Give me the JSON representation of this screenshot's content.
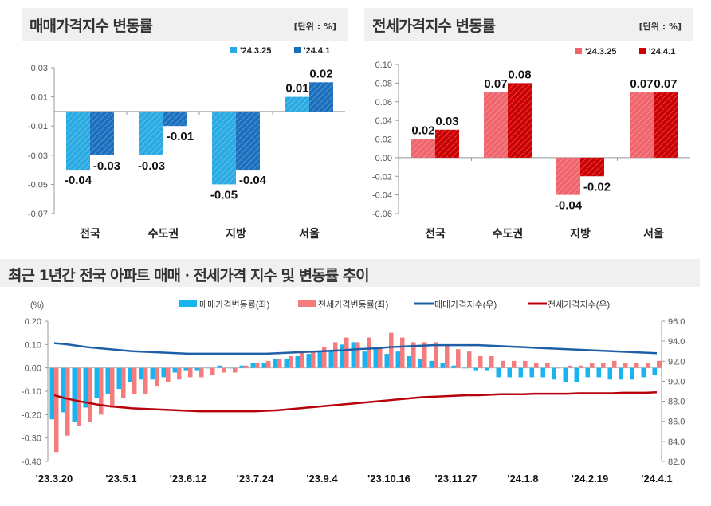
{
  "chart_data": [
    {
      "type": "bar",
      "title": "매매가격지수 변동률",
      "unit": "[단위 : %]",
      "categories": [
        "전국",
        "수도권",
        "지방",
        "서울"
      ],
      "series": [
        {
          "name": "'24.3.25",
          "values": [
            -0.04,
            -0.03,
            -0.05,
            0.01
          ],
          "color": "#2aaae2"
        },
        {
          "name": "'24.4.1",
          "values": [
            -0.03,
            -0.01,
            -0.04,
            0.02
          ],
          "color": "#1b6fbf"
        }
      ],
      "ylim": [
        -0.07,
        0.03
      ],
      "yticks": [
        "0.03",
        "0.01",
        "-0.01",
        "-0.03",
        "-0.05",
        "-0.07"
      ],
      "legend": "top-right",
      "grid": false
    },
    {
      "type": "bar",
      "title": "전세가격지수 변동률",
      "unit": "[단위 : %]",
      "categories": [
        "전국",
        "수도권",
        "지방",
        "서울"
      ],
      "series": [
        {
          "name": "'24.3.25",
          "values": [
            0.02,
            0.07,
            -0.04,
            0.07
          ],
          "color": "#f0646e"
        },
        {
          "name": "'24.4.1",
          "values": [
            0.03,
            0.08,
            -0.02,
            0.07
          ],
          "color": "#cc0000"
        }
      ],
      "ylim": [
        -0.06,
        0.1
      ],
      "yticks": [
        "0.10",
        "0.08",
        "0.06",
        "0.04",
        "0.02",
        "0.00",
        "-0.02",
        "-0.04",
        "-0.06"
      ],
      "legend": "top-right",
      "grid": false
    },
    {
      "type": "bar+line",
      "title": "최근 1년간 전국 아파트 매매ㆍ전세가격 지수 및 변동률 추이",
      "ylabel_left": "(%)",
      "ylim_left": [
        -0.4,
        0.2
      ],
      "yticks_left": [
        "0.20",
        "0.10",
        "0.00",
        "-0.10",
        "-0.20",
        "-0.30",
        "-0.40"
      ],
      "ylim_right": [
        82.0,
        96.0
      ],
      "yticks_right": [
        "96.0",
        "94.0",
        "92.0",
        "90.0",
        "88.0",
        "86.0",
        "84.0",
        "82.0"
      ],
      "xtick_labels": [
        "'23.3.20",
        "'23.5.1",
        "'23.6.12",
        "'23.7.24",
        "'23.9.4",
        "'23.10.16",
        "'23.11.27",
        "'24.1.8",
        "'24.2.19",
        "'24.4.1"
      ],
      "xtick_every_weeks": 6,
      "legend": "top",
      "grid": false,
      "series": [
        {
          "name": "매매가격변동률(좌)",
          "kind": "bar",
          "axis": "left",
          "color": "#18b4f0",
          "values": [
            -0.22,
            -0.19,
            -0.23,
            -0.17,
            -0.13,
            -0.11,
            -0.09,
            -0.06,
            -0.05,
            -0.05,
            -0.04,
            -0.02,
            -0.01,
            -0.01,
            0.0,
            0.01,
            0.0,
            0.01,
            0.02,
            0.02,
            0.04,
            0.04,
            0.05,
            0.06,
            0.07,
            0.07,
            0.1,
            0.11,
            0.07,
            0.08,
            0.06,
            0.07,
            0.05,
            0.04,
            0.03,
            0.02,
            0.01,
            0.0,
            -0.01,
            -0.01,
            -0.04,
            -0.04,
            -0.04,
            -0.04,
            -0.04,
            -0.05,
            -0.06,
            -0.06,
            -0.04,
            -0.04,
            -0.05,
            -0.05,
            -0.05,
            -0.04,
            -0.03
          ]
        },
        {
          "name": "전세가격변동률(좌)",
          "kind": "bar",
          "axis": "left",
          "color": "#f47c7c",
          "values": [
            -0.36,
            -0.29,
            -0.25,
            -0.23,
            -0.2,
            -0.17,
            -0.13,
            -0.11,
            -0.11,
            -0.08,
            -0.06,
            -0.05,
            -0.04,
            -0.04,
            -0.03,
            -0.02,
            -0.02,
            0.01,
            0.02,
            0.03,
            0.04,
            0.05,
            0.07,
            0.07,
            0.09,
            0.11,
            0.13,
            0.11,
            0.13,
            0.09,
            0.15,
            0.13,
            0.11,
            0.11,
            0.11,
            0.1,
            0.08,
            0.07,
            0.05,
            0.05,
            0.03,
            0.03,
            0.03,
            0.02,
            0.02,
            0.0,
            0.01,
            0.01,
            0.02,
            0.02,
            0.03,
            0.02,
            0.02,
            0.02,
            0.03
          ]
        },
        {
          "name": "매매가격지수(우)",
          "kind": "line",
          "axis": "right",
          "color": "#1f5fa8",
          "values": [
            93.8,
            93.7,
            93.55,
            93.4,
            93.3,
            93.2,
            93.1,
            93.0,
            92.95,
            92.9,
            92.85,
            92.8,
            92.75,
            92.75,
            92.75,
            92.75,
            92.75,
            92.75,
            92.75,
            92.75,
            92.8,
            92.85,
            92.9,
            92.95,
            93.0,
            93.05,
            93.1,
            93.2,
            93.25,
            93.3,
            93.4,
            93.45,
            93.5,
            93.55,
            93.6,
            93.6,
            93.6,
            93.6,
            93.6,
            93.55,
            93.5,
            93.45,
            93.4,
            93.35,
            93.3,
            93.25,
            93.2,
            93.15,
            93.1,
            93.05,
            93.0,
            92.95,
            92.9,
            92.85,
            92.8
          ]
        },
        {
          "name": "전세가격지수(우)",
          "kind": "line",
          "axis": "right",
          "color": "#b8000c",
          "values": [
            88.6,
            88.3,
            88.05,
            87.85,
            87.65,
            87.5,
            87.4,
            87.3,
            87.25,
            87.2,
            87.15,
            87.1,
            87.05,
            87.0,
            87.0,
            87.0,
            87.0,
            87.0,
            87.0,
            87.05,
            87.1,
            87.2,
            87.3,
            87.4,
            87.5,
            87.6,
            87.7,
            87.8,
            87.9,
            88.0,
            88.1,
            88.2,
            88.3,
            88.4,
            88.45,
            88.5,
            88.55,
            88.6,
            88.6,
            88.65,
            88.7,
            88.7,
            88.7,
            88.75,
            88.75,
            88.75,
            88.75,
            88.8,
            88.8,
            88.8,
            88.8,
            88.85,
            88.85,
            88.85,
            88.9
          ]
        }
      ]
    }
  ]
}
